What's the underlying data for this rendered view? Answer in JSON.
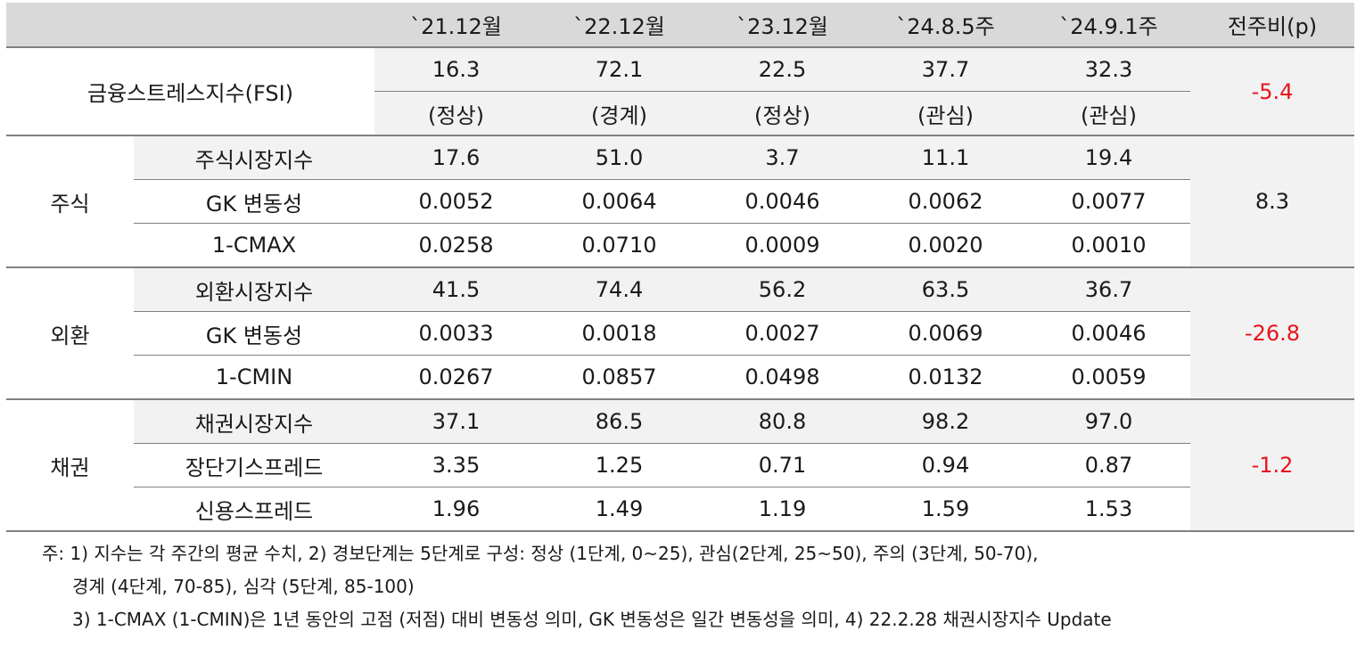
{
  "headers": [
    "`21.12월",
    "`22.12월",
    "`23.12월",
    "`24.8.5주",
    "`24.9.1주",
    "전주비(p)"
  ],
  "fsi": {
    "label": "금융스트레스지수(FSI)",
    "values": [
      "16.3",
      "72.1",
      "22.5",
      "37.7",
      "32.3"
    ],
    "levels": [
      "(정상)",
      "(경계)",
      "(정상)",
      "(관심)",
      "(관심)"
    ],
    "change": "-5.4"
  },
  "groups": [
    {
      "name": "주식",
      "change": "8.3",
      "rows": [
        {
          "label": "주식시장지수",
          "values": [
            "17.6",
            "51.0",
            "3.7",
            "11.1",
            "19.4"
          ]
        },
        {
          "label": "GK 변동성",
          "values": [
            "0.0052",
            "0.0064",
            "0.0046",
            "0.0062",
            "0.0077"
          ]
        },
        {
          "label": "1-CMAX",
          "values": [
            "0.0258",
            "0.0710",
            "0.0009",
            "0.0020",
            "0.0010"
          ]
        }
      ]
    },
    {
      "name": "외환",
      "change": "-26.8",
      "rows": [
        {
          "label": "외환시장지수",
          "values": [
            "41.5",
            "74.4",
            "56.2",
            "63.5",
            "36.7"
          ]
        },
        {
          "label": "GK 변동성",
          "values": [
            "0.0033",
            "0.0018",
            "0.0027",
            "0.0069",
            "0.0046"
          ]
        },
        {
          "label": "1-CMIN",
          "values": [
            "0.0267",
            "0.0857",
            "0.0498",
            "0.0132",
            "0.0059"
          ]
        }
      ]
    },
    {
      "name": "채권",
      "change": "-1.2",
      "rows": [
        {
          "label": "채권시장지수",
          "values": [
            "37.1",
            "86.5",
            "80.8",
            "98.2",
            "97.0"
          ]
        },
        {
          "label": "장단기스프레드",
          "values": [
            "3.35",
            "1.25",
            "0.71",
            "0.94",
            "0.87"
          ]
        },
        {
          "label": "신용스프레드",
          "values": [
            "1.96",
            "1.49",
            "1.19",
            "1.59",
            "1.53"
          ]
        }
      ]
    }
  ],
  "notes": [
    "주: 1) 지수는 각 주간의 평균 수치, 2) 경보단계는 5단계로 구성: 정상 (1단계, 0~25), 관심(2단계, 25~50), 주의 (3단계, 50-70),",
    "경계 (4단계, 70-85), 심각 (5단계, 85-100)",
    "3) 1-CMAX (1-CMIN)은 1년 동안의 고점 (저점) 대비 변동성 의미, GK 변동성은 일간 변동성을 의미, 4) 22.2.28 채권시장지수 Update"
  ],
  "colors": {
    "header_bg": "#d9d9d9",
    "shade_bg": "#f2f2f2",
    "negative": "#e8141b",
    "rule": "#808080"
  }
}
